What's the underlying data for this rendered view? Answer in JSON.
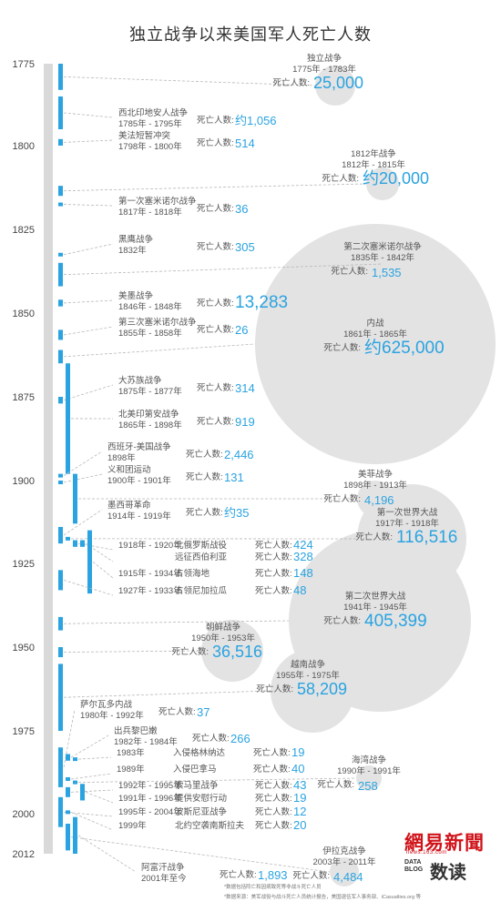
{
  "title": "独立战争以来美国军人死亡人数",
  "deaths_key": "死亡人数:",
  "footnotes": [
    "*数据包括阵亡和因病致死等非战斗死亡人员",
    "*数据来源：美军战役与战斗死亡人员统计报告，美国退伍军人事务部、iCasualties.org 等"
  ],
  "logos": {
    "netease_main": "網易新聞",
    "netease_sub": "news.163.com",
    "datablog_box": "DATA BLOG",
    "datablog_cn": "数读"
  },
  "colors": {
    "accent": "#2aa3e0",
    "bubble": "#e3e3e3",
    "bar": "#2aa3e0",
    "track": "#d9d9d9"
  },
  "chart_data": {
    "type": "timeline-bubble",
    "title": "独立战争以来美国军人死亡人数",
    "year_axis": {
      "min": 1775,
      "max": 2012,
      "ticks": [
        1775,
        1800,
        1825,
        1850,
        1875,
        1900,
        1925,
        1950,
        1975,
        2000,
        2012
      ]
    },
    "wars": [
      {
        "name": "独立战争",
        "years": "1775年 - 1783年",
        "deaths_text": "25,000",
        "deaths": 25000,
        "start": 1775,
        "end": 1783,
        "layout": "bubble"
      },
      {
        "name": "西北印地安人战争",
        "years": "1785年 - 1795年",
        "deaths_text": "约1,056",
        "deaths": 1056,
        "start": 1785,
        "end": 1795,
        "layout": "row"
      },
      {
        "name": "美法短暂冲突",
        "years": "1798年 - 1800年",
        "deaths_text": "514",
        "deaths": 514,
        "start": 1798,
        "end": 1800,
        "layout": "row"
      },
      {
        "name": "1812年战争",
        "years": "1812年 - 1815年",
        "deaths_text": "约20,000",
        "deaths": 20000,
        "start": 1812,
        "end": 1815,
        "layout": "bubble"
      },
      {
        "name": "第一次塞米诺尔战争",
        "years": "1817年 - 1818年",
        "deaths_text": "36",
        "deaths": 36,
        "start": 1817,
        "end": 1818,
        "layout": "row"
      },
      {
        "name": "黑鹰战争",
        "years": "1832年",
        "deaths_text": "305",
        "deaths": 305,
        "start": 1832,
        "end": 1832,
        "layout": "row"
      },
      {
        "name": "第二次塞米诺尔战争",
        "years": "1835年 - 1842年",
        "deaths_text": "1,535",
        "deaths": 1535,
        "start": 1835,
        "end": 1842,
        "layout": "bubble"
      },
      {
        "name": "美墨战争",
        "years": "1846年 - 1848年",
        "deaths_text": "13,283",
        "deaths": 13283,
        "start": 1846,
        "end": 1848,
        "layout": "row"
      },
      {
        "name": "第三次塞米诺尔战争",
        "years": "1855年 - 1858年",
        "deaths_text": "26",
        "deaths": 26,
        "start": 1855,
        "end": 1858,
        "layout": "row"
      },
      {
        "name": "内战",
        "years": "1861年 - 1865年",
        "deaths_text": "约625,000",
        "deaths": 625000,
        "start": 1861,
        "end": 1865,
        "layout": "bubble"
      },
      {
        "name": "大苏族战争",
        "years": "1875年 - 1877年",
        "deaths_text": "314",
        "deaths": 314,
        "start": 1875,
        "end": 1877,
        "layout": "row"
      },
      {
        "name": "北美印第安战争",
        "years": "1865年 - 1898年",
        "deaths_text": "919",
        "deaths": 919,
        "start": 1865,
        "end": 1898,
        "layout": "row"
      },
      {
        "name": "西班牙-美国战争",
        "years": "1898年",
        "deaths_text": "2,446",
        "deaths": 2446,
        "start": 1898,
        "end": 1898,
        "layout": "row"
      },
      {
        "name": "义和团运动",
        "years": "1900年 - 1901年",
        "deaths_text": "131",
        "deaths": 131,
        "start": 1900,
        "end": 1901,
        "layout": "row"
      },
      {
        "name": "美菲战争",
        "years": "1898年 - 1913年",
        "deaths_text": "4,196",
        "deaths": 4196,
        "start": 1898,
        "end": 1913,
        "layout": "bubble"
      },
      {
        "name": "墨西哥革命",
        "years": "1914年 - 1919年",
        "deaths_text": "约35",
        "deaths": 35,
        "start": 1914,
        "end": 1919,
        "layout": "row"
      },
      {
        "name": "第一次世界大战",
        "years": "1917年 - 1918年",
        "deaths_text": "116,516",
        "deaths": 116516,
        "start": 1917,
        "end": 1918,
        "layout": "bubble"
      },
      {
        "name": "北俄罗斯战役",
        "years": "1918年 - 1920年",
        "deaths_text": "424",
        "deaths": 424,
        "start": 1918,
        "end": 1920,
        "layout": "row2"
      },
      {
        "name": "远征西伯利亚",
        "years": "",
        "deaths_text": "328",
        "deaths": 328,
        "start": 1918,
        "end": 1920,
        "layout": "row2"
      },
      {
        "name": "占领海地",
        "years": "1915年 - 1934年",
        "deaths_text": "148",
        "deaths": 148,
        "start": 1915,
        "end": 1934,
        "layout": "row2"
      },
      {
        "name": "占领尼加拉瓜",
        "years": "1927年 - 1933年",
        "deaths_text": "48",
        "deaths": 48,
        "start": 1927,
        "end": 1933,
        "layout": "row2"
      },
      {
        "name": "第二次世界大战",
        "years": "1941年 - 1945年",
        "deaths_text": "405,399",
        "deaths": 405399,
        "start": 1941,
        "end": 1945,
        "layout": "bubble"
      },
      {
        "name": "朝鲜战争",
        "years": "1950年 - 1953年",
        "deaths_text": "36,516",
        "deaths": 36516,
        "start": 1950,
        "end": 1953,
        "layout": "bubble"
      },
      {
        "name": "越南战争",
        "years": "1955年 - 1975年",
        "deaths_text": "58,209",
        "deaths": 58209,
        "start": 1955,
        "end": 1975,
        "layout": "bubble"
      },
      {
        "name": "萨尔瓦多内战",
        "years": "1980年 - 1992年",
        "deaths_text": "37",
        "deaths": 37,
        "start": 1980,
        "end": 1992,
        "layout": "row"
      },
      {
        "name": "出兵黎巴嫩",
        "years": "1982年 - 1984年",
        "deaths_text": "266",
        "deaths": 266,
        "start": 1982,
        "end": 1984,
        "layout": "row"
      },
      {
        "name": "入侵格林纳达",
        "years": "1983年",
        "deaths_text": "19",
        "deaths": 19,
        "start": 1983,
        "end": 1983,
        "layout": "row2"
      },
      {
        "name": "入侵巴拿马",
        "years": "1989年",
        "deaths_text": "40",
        "deaths": 40,
        "start": 1989,
        "end": 1989,
        "layout": "row2"
      },
      {
        "name": "海湾战争",
        "years": "1990年 - 1991年",
        "deaths_text": "258",
        "deaths": 258,
        "start": 1990,
        "end": 1991,
        "layout": "bubble"
      },
      {
        "name": "索马里战争",
        "years": "1992年 - 1995年",
        "deaths_text": "43",
        "deaths": 43,
        "start": 1992,
        "end": 1995,
        "layout": "row2"
      },
      {
        "name": "提供安慰行动",
        "years": "1991年 - 1996年",
        "deaths_text": "19",
        "deaths": 19,
        "start": 1991,
        "end": 1996,
        "layout": "row2"
      },
      {
        "name": "波斯尼亚战争",
        "years": "1995年 - 2004年",
        "deaths_text": "12",
        "deaths": 12,
        "start": 1995,
        "end": 2004,
        "layout": "row2"
      },
      {
        "name": "北约空袭南斯拉夫",
        "years": "1999年",
        "deaths_text": "20",
        "deaths": 20,
        "start": 1999,
        "end": 1999,
        "layout": "row2"
      },
      {
        "name": "伊拉克战争",
        "years": "2003年 - 2011年",
        "deaths_text": "4,484",
        "deaths": 4484,
        "start": 2003,
        "end": 2011,
        "layout": "bubble"
      },
      {
        "name": "阿富汗战争",
        "years": "2001年至今",
        "deaths_text": "1,893",
        "deaths": 1893,
        "start": 2001,
        "end": 2012,
        "layout": "row"
      }
    ]
  }
}
